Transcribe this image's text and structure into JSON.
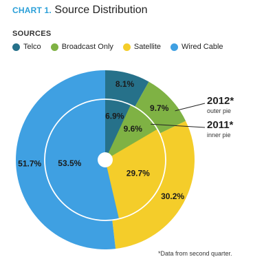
{
  "header": {
    "title_prefix": "CHART 1.",
    "title_text": "Source Distribution"
  },
  "legend": {
    "heading": "SOURCES",
    "items": [
      {
        "label": "Telco",
        "color": "#26718a"
      },
      {
        "label": "Broadcast Only",
        "color": "#7fb244"
      },
      {
        "label": "Satellite",
        "color": "#f4cd2a"
      },
      {
        "label": "Wired Cable",
        "color": "#3fa0e2"
      }
    ]
  },
  "footnote": "*Data from second quarter.",
  "chart_data": {
    "type": "pie",
    "title": "Source Distribution",
    "categories": [
      "Telco",
      "Broadcast Only",
      "Satellite",
      "Wired Cable"
    ],
    "colors": [
      "#26718a",
      "#7fb244",
      "#f4cd2a",
      "#3fa0e2"
    ],
    "series": [
      {
        "name": "2012*",
        "ring_label": "outer pie",
        "values": [
          8.1,
          9.7,
          30.2,
          51.7
        ],
        "value_labels": [
          "8.1%",
          "9.7%",
          "30.2%",
          "51.7%"
        ]
      },
      {
        "name": "2011*",
        "ring_label": "inner pie",
        "values": [
          6.9,
          9.6,
          29.7,
          53.5
        ],
        "value_labels": [
          "6.9%",
          "9.6%",
          "29.7%",
          "53.5%"
        ]
      }
    ]
  }
}
